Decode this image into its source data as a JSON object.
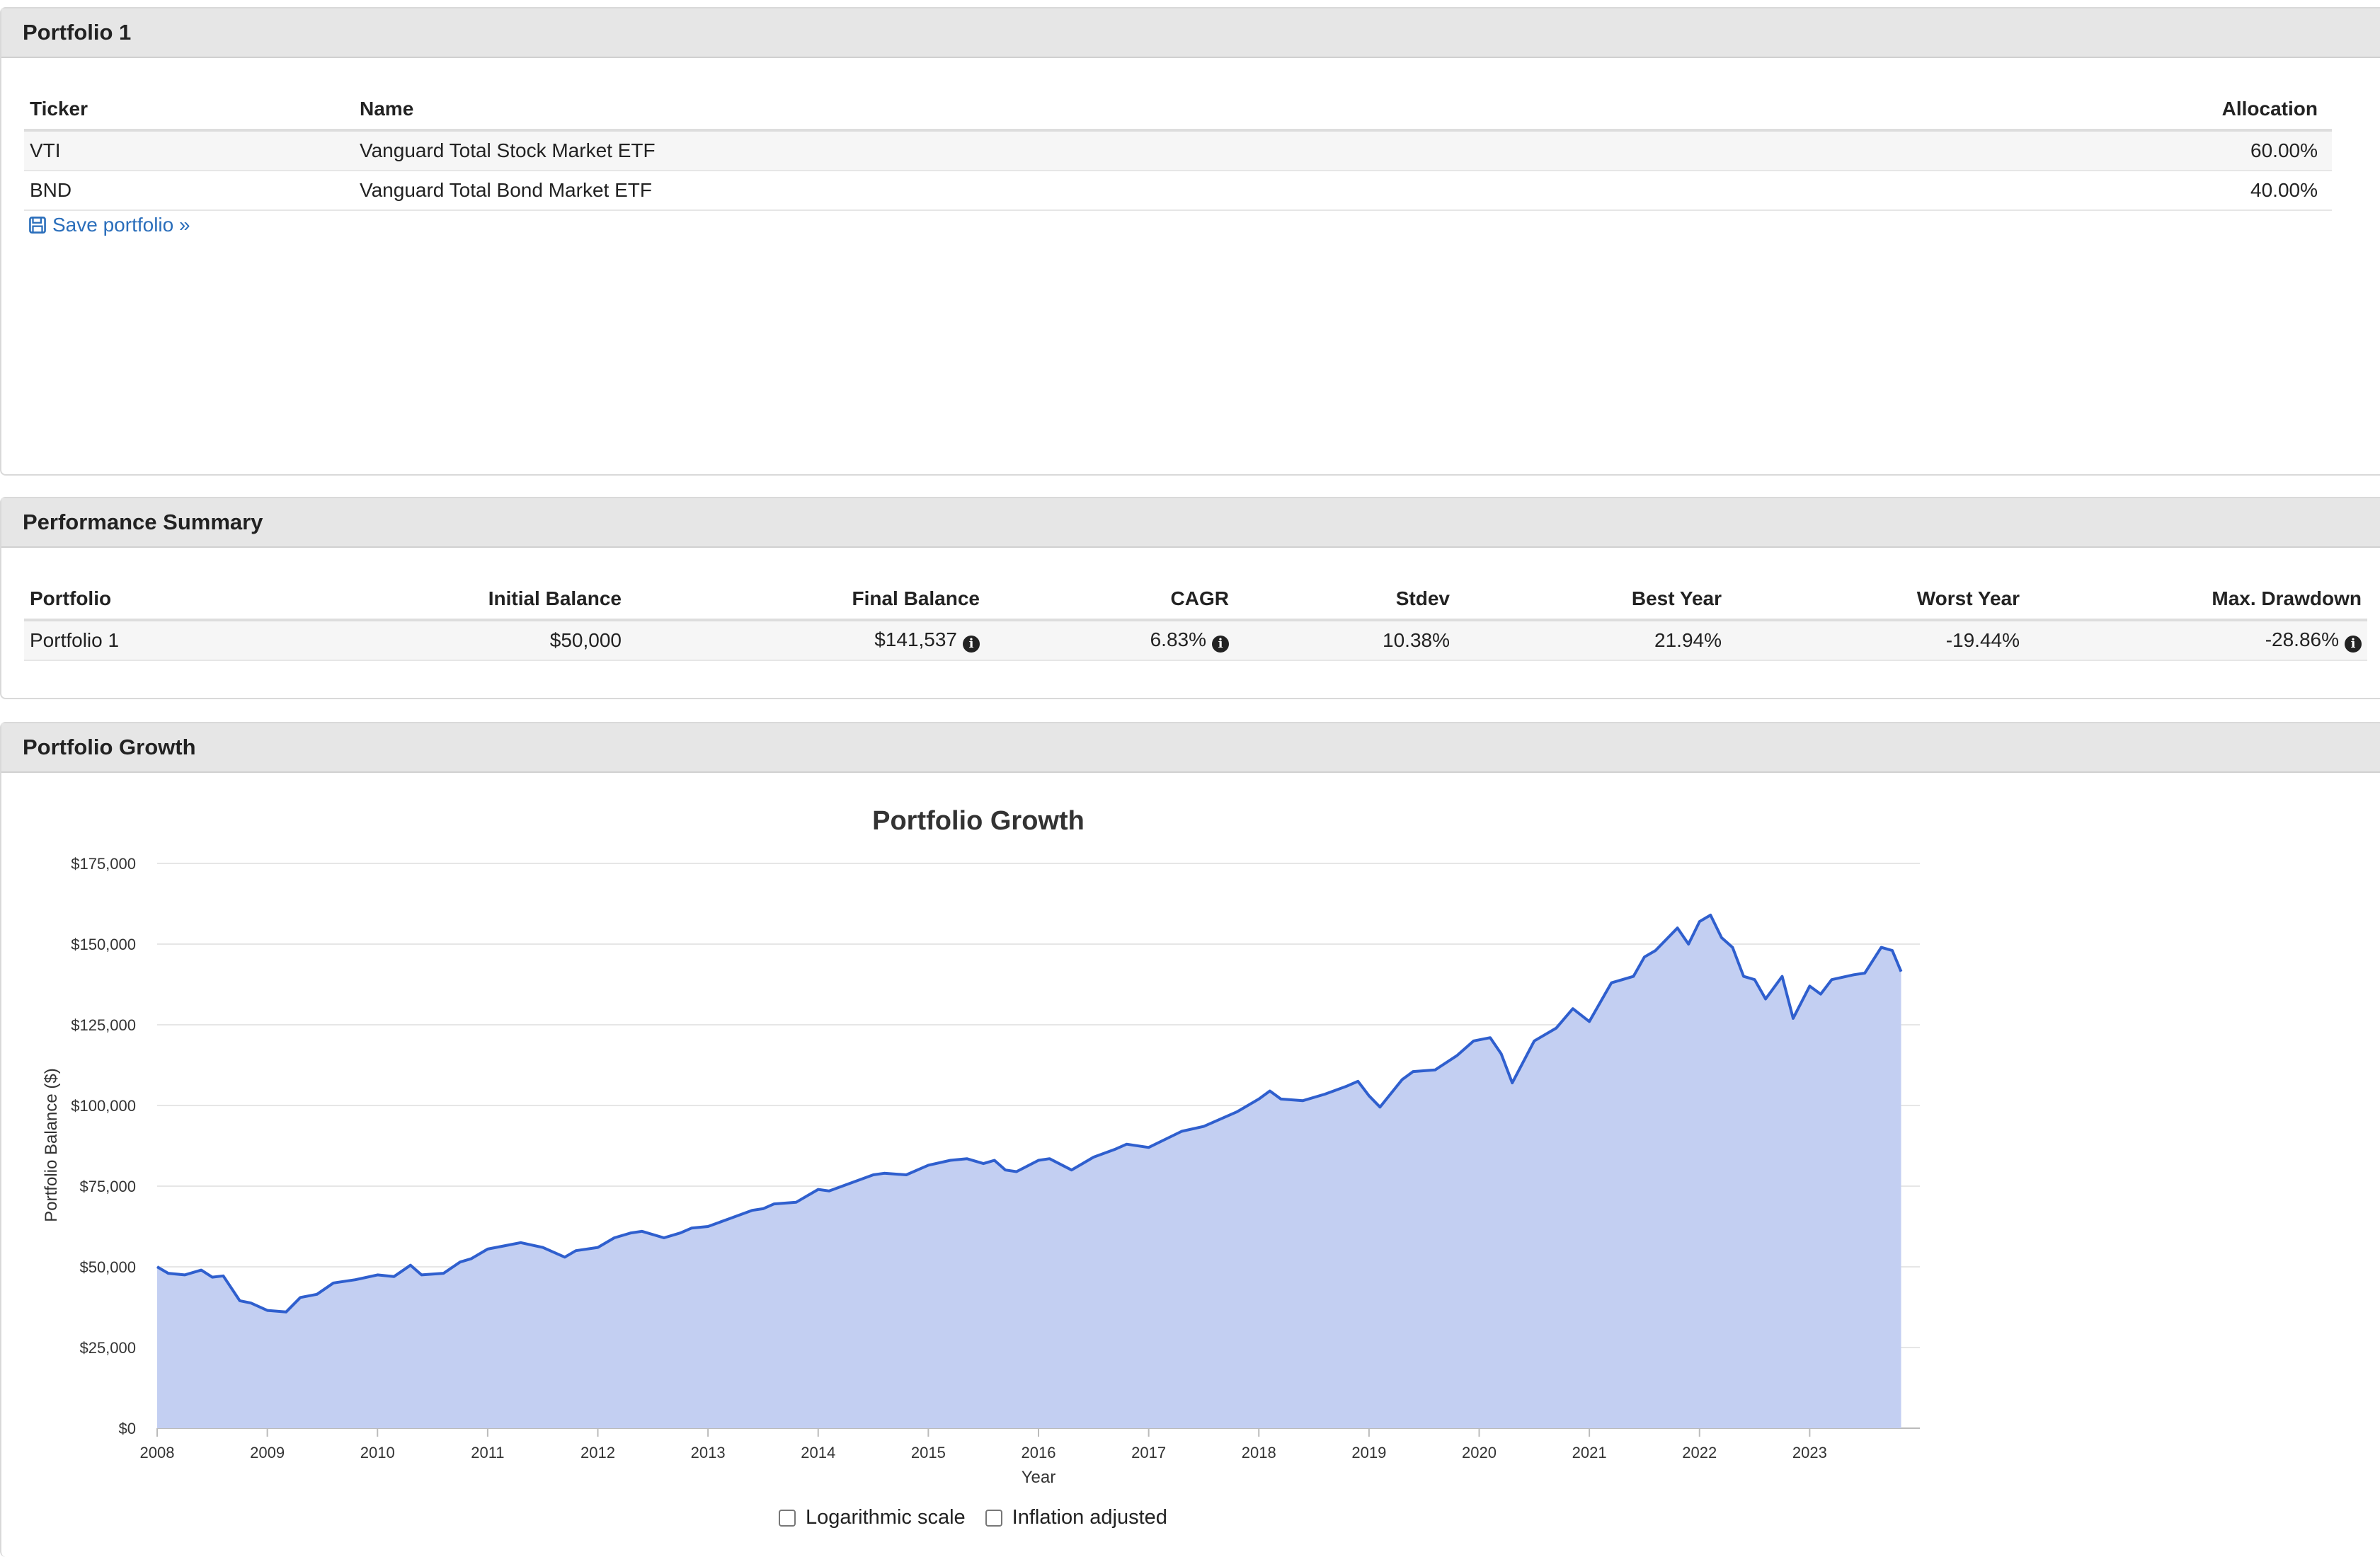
{
  "portfolio_panel": {
    "title": "Portfolio 1",
    "columns": [
      "Ticker",
      "Name",
      "Allocation"
    ],
    "rows": [
      {
        "ticker": "VTI",
        "name": "Vanguard Total Stock Market ETF",
        "allocation": "60.00%"
      },
      {
        "ticker": "BND",
        "name": "Vanguard Total Bond Market ETF",
        "allocation": "40.00%"
      }
    ],
    "save_label": "Save portfolio »"
  },
  "summary_panel": {
    "title": "Performance Summary",
    "columns": [
      "Portfolio",
      "Initial Balance",
      "Final Balance",
      "CAGR",
      "Stdev",
      "Best Year",
      "Worst Year",
      "Max. Drawdown"
    ],
    "row": {
      "portfolio": "Portfolio 1",
      "initial_balance": "$50,000",
      "final_balance": "$141,537",
      "cagr": "6.83%",
      "stdev": "10.38%",
      "best_year": "21.94%",
      "worst_year": "-19.44%",
      "max_drawdown": "-28.86%"
    },
    "info_glyph": "i"
  },
  "growth_panel": {
    "title": "Portfolio Growth",
    "logarithmic_label": "Logarithmic scale",
    "inflation_label": "Inflation adjusted",
    "logarithmic_checked": false,
    "inflation_checked": false
  },
  "colors": {
    "line": "#2f5fce",
    "area": "#c3cff2",
    "link": "#2a6ebb",
    "panel_header": "#e6e6e6"
  },
  "chart_data": {
    "type": "area",
    "title": "Portfolio Growth",
    "xlabel": "Year",
    "ylabel": "Portfolio Balance ($)",
    "ylim": [
      0,
      175000
    ],
    "xlim": [
      2008,
      2024
    ],
    "yticks": [
      0,
      25000,
      50000,
      75000,
      100000,
      125000,
      150000,
      175000
    ],
    "ytick_labels": [
      "$0",
      "$25,000",
      "$50,000",
      "$75,000",
      "$100,000",
      "$125,000",
      "$150,000",
      "$175,000"
    ],
    "xticks": [
      2008,
      2009,
      2010,
      2011,
      2012,
      2013,
      2014,
      2015,
      2016,
      2017,
      2018,
      2019,
      2020,
      2021,
      2022,
      2023
    ],
    "grid": true,
    "legend": "none",
    "series": [
      {
        "x": [
          2008.0,
          2008.1,
          2008.25,
          2008.4,
          2008.5,
          2008.6,
          2008.75,
          2008.85,
          2009.0,
          2009.17,
          2009.3,
          2009.45,
          2009.6,
          2009.8,
          2010.0,
          2010.15,
          2010.3,
          2010.4,
          2010.6,
          2010.75,
          2010.85,
          2011.0,
          2011.15,
          2011.3,
          2011.5,
          2011.7,
          2011.8,
          2012.0,
          2012.15,
          2012.3,
          2012.4,
          2012.6,
          2012.75,
          2012.85,
          2013.0,
          2013.2,
          2013.4,
          2013.5,
          2013.6,
          2013.8,
          2014.0,
          2014.1,
          2014.3,
          2014.5,
          2014.6,
          2014.8,
          2015.0,
          2015.2,
          2015.35,
          2015.5,
          2015.6,
          2015.7,
          2015.8,
          2016.0,
          2016.1,
          2016.3,
          2016.5,
          2016.7,
          2016.8,
          2017.0,
          2017.3,
          2017.5,
          2017.8,
          2018.0,
          2018.1,
          2018.2,
          2018.4,
          2018.6,
          2018.8,
          2018.9,
          2019.0,
          2019.1,
          2019.3,
          2019.4,
          2019.6,
          2019.8,
          2019.95,
          2020.1,
          2020.2,
          2020.3,
          2020.5,
          2020.7,
          2020.85,
          2021.0,
          2021.2,
          2021.4,
          2021.5,
          2021.6,
          2021.8,
          2021.9,
          2022.0,
          2022.1,
          2022.2,
          2022.3,
          2022.4,
          2022.5,
          2022.6,
          2022.75,
          2022.85,
          2023.0,
          2023.1,
          2023.2,
          2023.4,
          2023.5,
          2023.65,
          2023.75,
          2023.83
        ],
        "values": [
          50000,
          48000,
          47500,
          49000,
          46800,
          47200,
          39500,
          38800,
          36500,
          36000,
          40500,
          41500,
          45000,
          46000,
          47500,
          47000,
          50500,
          47500,
          48000,
          51500,
          52500,
          55500,
          56500,
          57500,
          56000,
          53000,
          55000,
          56000,
          59000,
          60500,
          61000,
          59000,
          60500,
          62000,
          62500,
          65000,
          67500,
          68000,
          69500,
          70000,
          74000,
          73500,
          76000,
          78500,
          79000,
          78500,
          81500,
          83000,
          83500,
          82000,
          83000,
          80000,
          79500,
          83000,
          83500,
          80000,
          84000,
          86500,
          88000,
          87000,
          92000,
          93500,
          98000,
          102000,
          104500,
          102000,
          101500,
          103500,
          106000,
          107500,
          103000,
          99500,
          108000,
          110500,
          111000,
          115500,
          120000,
          121000,
          116000,
          107000,
          120000,
          124000,
          130000,
          126000,
          138000,
          140000,
          146000,
          148000,
          155000,
          150000,
          157000,
          159000,
          152000,
          149000,
          140000,
          139000,
          133000,
          140000,
          127000,
          137000,
          134500,
          139000,
          140500,
          141000,
          149000,
          148000,
          141500
        ]
      }
    ]
  }
}
